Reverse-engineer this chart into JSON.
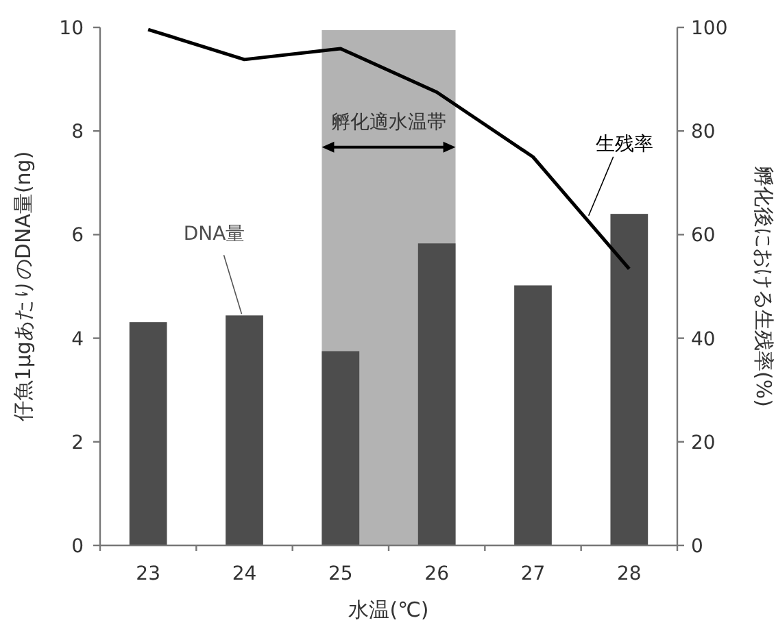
{
  "chart_data": {
    "type": "bar",
    "xlabel": "水温(℃)",
    "ylabel": "仔魚1μgあたりのDNA量(ng)",
    "y2label": "孵化後における生残率(%)",
    "categories": [
      "23",
      "24",
      "25",
      "26",
      "27",
      "28"
    ],
    "series": [
      {
        "name": "DNA量",
        "color": "#4d4d4d",
        "values": [
          4.31,
          4.44,
          3.75,
          5.83,
          5.02,
          6.4
        ]
      },
      {
        "name": "生残率",
        "type": "line",
        "axis": "y2",
        "color": "#000000",
        "values": [
          99.6,
          93.8,
          95.9,
          87.5,
          75.0,
          53.4
        ]
      }
    ],
    "ylim": [
      0,
      10
    ],
    "yticks": [
      0,
      2,
      4,
      6,
      8,
      10
    ],
    "y2lim": [
      0,
      100
    ],
    "y2ticks": [
      0,
      20,
      40,
      60,
      80,
      100
    ],
    "bands": [
      {
        "axis": "x",
        "from": "25",
        "to": "26",
        "label": "孵化適水温帯",
        "color": "#b3b3b3"
      }
    ],
    "grid": false,
    "legend": false,
    "marker": "none",
    "line_style": "solid"
  }
}
